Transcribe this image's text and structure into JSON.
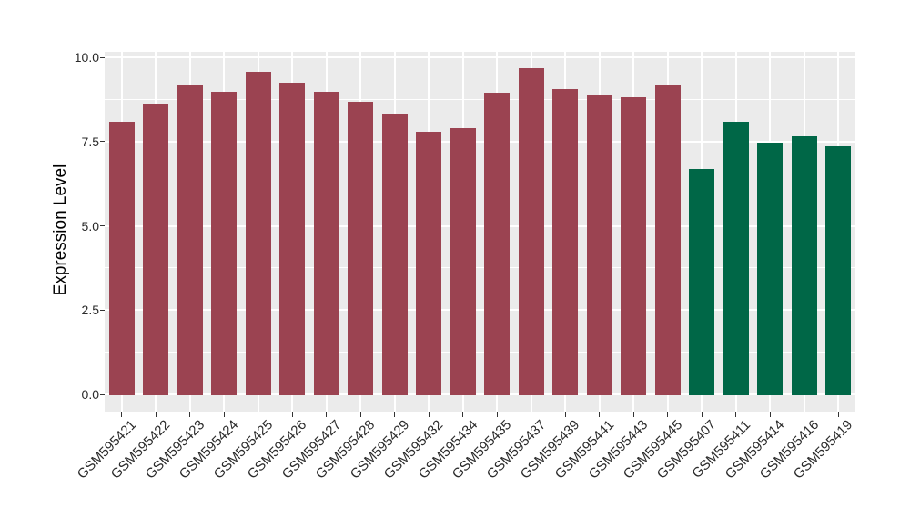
{
  "chart_data": {
    "type": "bar",
    "title": "",
    "xlabel": "",
    "ylabel": "Expression Level",
    "ylim": [
      0,
      10
    ],
    "yticks": [
      10.0,
      7.5,
      5.0,
      2.5,
      0.0
    ],
    "ytick_labels": [
      "10.0",
      "7.5",
      "5.0",
      "2.5",
      "0.0"
    ],
    "yticks_minor": [
      8.75,
      6.25,
      3.75,
      1.25
    ],
    "grid": true,
    "legend_position": "none",
    "panel_bg": "#EBEBEB",
    "grid_color": "#FFFFFF",
    "tick_color": "#333333",
    "categories": [
      "GSM595421",
      "GSM595422",
      "GSM595423",
      "GSM595424",
      "GSM595425",
      "GSM595426",
      "GSM595427",
      "GSM595428",
      "GSM595429",
      "GSM595432",
      "GSM595434",
      "GSM595435",
      "GSM595437",
      "GSM595439",
      "GSM595441",
      "GSM595443",
      "GSM595445",
      "GSM595407",
      "GSM595411",
      "GSM595414",
      "GSM595416",
      "GSM595419"
    ],
    "values": [
      8.08,
      8.62,
      9.2,
      8.98,
      9.57,
      9.25,
      8.98,
      8.67,
      8.34,
      7.79,
      7.9,
      8.94,
      9.67,
      9.06,
      8.88,
      8.81,
      9.17,
      6.68,
      8.08,
      7.46,
      7.65,
      7.36
    ],
    "groups": [
      "group1",
      "group1",
      "group1",
      "group1",
      "group1",
      "group1",
      "group1",
      "group1",
      "group1",
      "group1",
      "group1",
      "group1",
      "group1",
      "group1",
      "group1",
      "group1",
      "group1",
      "group2",
      "group2",
      "group2",
      "group2",
      "group2"
    ],
    "group_colors": {
      "group1": "#9B4351",
      "group2": "#006747"
    }
  }
}
